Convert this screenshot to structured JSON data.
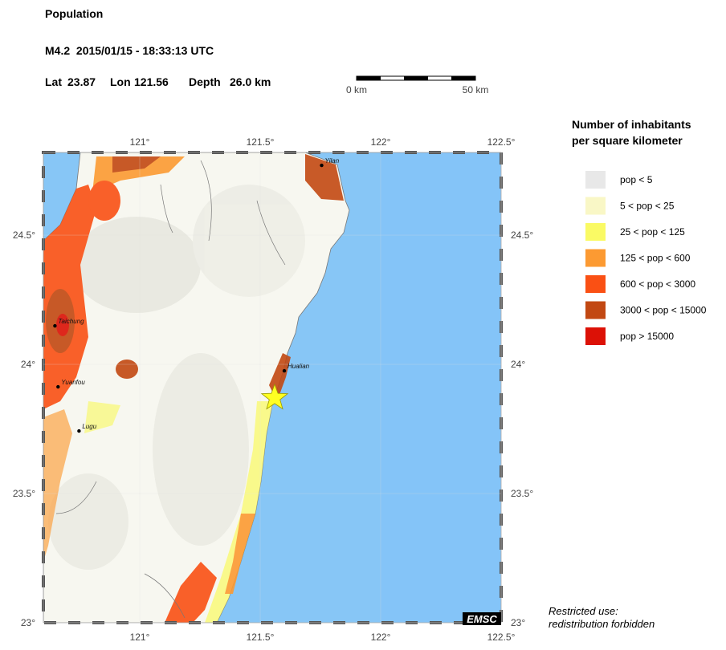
{
  "header": {
    "title": "Population",
    "event": "M4.2  2015/01/15 - 18:33:13 UTC",
    "lat_label": "Lat",
    "lat": 23.87,
    "lon_label": "Lon",
    "lon": 121.56,
    "depth_label": "Depth",
    "depth": "26.0 km"
  },
  "map": {
    "lon_range": [
      120.6,
      122.5
    ],
    "lat_range": [
      23,
      24.82
    ],
    "lon_ticks": [
      {
        "value": 121,
        "label": "121°"
      },
      {
        "value": 121.5,
        "label": "121.5°"
      },
      {
        "value": 122,
        "label": "122°"
      },
      {
        "value": 122.5,
        "label": "122.5°"
      }
    ],
    "lat_ticks": [
      {
        "value": 23,
        "label": "23°"
      },
      {
        "value": 23.5,
        "label": "23.5°"
      },
      {
        "value": 24,
        "label": "24°"
      },
      {
        "value": 24.5,
        "label": "24.5°"
      }
    ],
    "cities": [
      {
        "name": "Taichung",
        "lon": 120.648,
        "lat": 24.149
      },
      {
        "name": "Yuanfou",
        "lon": 120.661,
        "lat": 23.913
      },
      {
        "name": "Lugu",
        "lon": 120.748,
        "lat": 23.742
      },
      {
        "name": "Hualian",
        "lon": 121.6,
        "lat": 23.975
      },
      {
        "name": "Yilan",
        "lon": 121.755,
        "lat": 24.77
      }
    ],
    "scale": {
      "start": "0 km",
      "end": "50 km"
    },
    "logo": "EMSC",
    "notice": [
      "Restricted use:",
      "redistribution forbidden"
    ]
  },
  "legend": {
    "title": [
      "Number of inhabitants",
      "per square kilometer"
    ],
    "items": [
      {
        "label": "pop < 5",
        "color": "#e8e8e8"
      },
      {
        "label": "5 < pop < 25",
        "color": "#f9f7c6"
      },
      {
        "label": "25 < pop < 125",
        "color": "#fafa64"
      },
      {
        "label": "125 < pop < 600",
        "color": "#fc9a32"
      },
      {
        "label": "600 < pop < 3000",
        "color": "#fa5014"
      },
      {
        "label": "3000 < pop < 15000",
        "color": "#c24812"
      },
      {
        "label": "pop > 15000",
        "color": "#dc1106"
      }
    ]
  }
}
